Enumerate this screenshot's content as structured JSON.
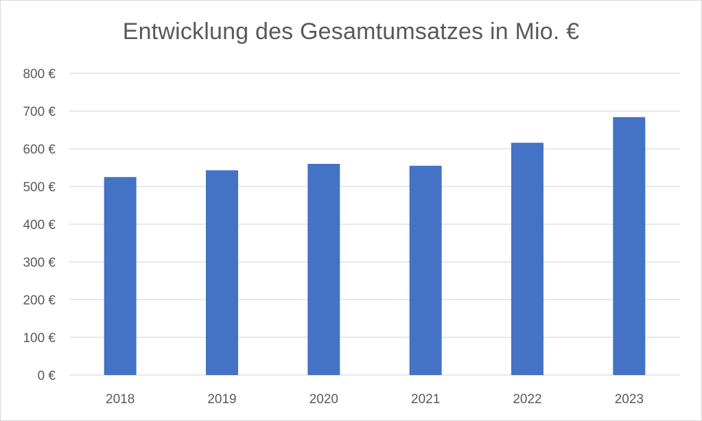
{
  "chart_data": {
    "type": "bar",
    "title": "Entwicklung des Gesamtumsatzes in Mio. €",
    "categories": [
      "2018",
      "2019",
      "2020",
      "2021",
      "2022",
      "2023"
    ],
    "values": [
      525,
      543,
      560,
      555,
      616,
      684
    ],
    "ylim": [
      0,
      800
    ],
    "yticks": [
      0,
      100,
      200,
      300,
      400,
      500,
      600,
      700,
      800
    ],
    "ytick_labels": [
      "0 €",
      "100 €",
      "200 €",
      "300 €",
      "400 €",
      "500 €",
      "600 €",
      "700 €",
      "800 €"
    ],
    "xlabel": "",
    "ylabel": "",
    "grid": true,
    "legend": "none",
    "bar_color": "#4472c4",
    "grid_color": "#d9d9d9"
  }
}
